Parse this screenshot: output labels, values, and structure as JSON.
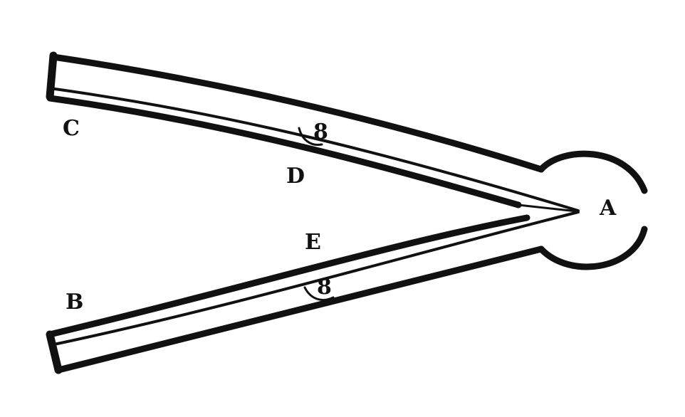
{
  "diagram": {
    "labels": {
      "a": "A",
      "b": "B",
      "c": "C",
      "d": "D",
      "e": "E"
    },
    "hinge_marks": {
      "upper": "8",
      "lower": "8"
    },
    "colors": {
      "ink": "#111111",
      "paper": "#ffffff"
    }
  }
}
